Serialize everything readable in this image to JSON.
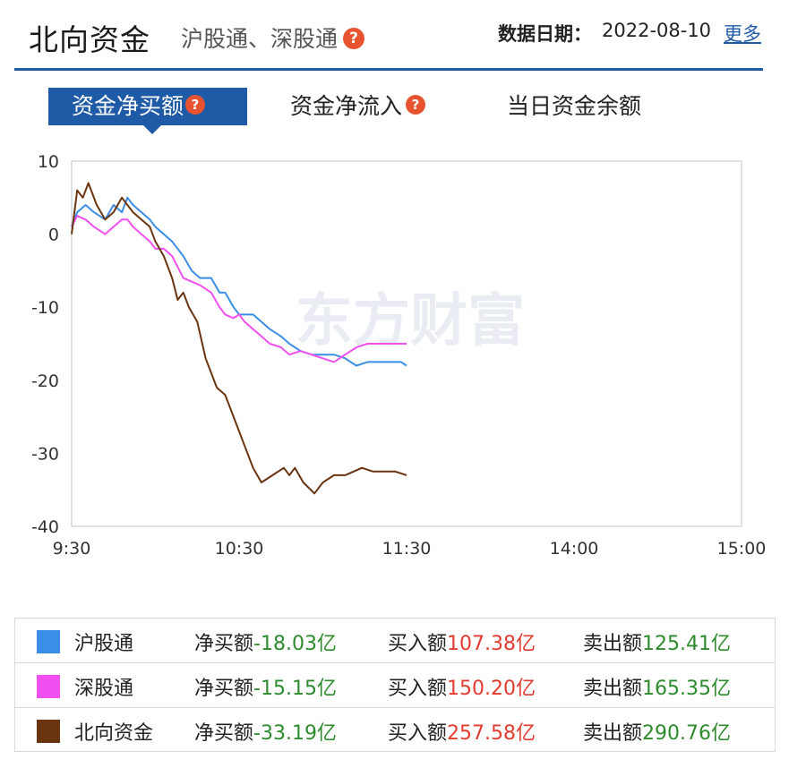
{
  "header": {
    "title": "北向资金",
    "subtitle": "沪股通、深股通",
    "help_glyph": "?",
    "date_label": "数据日期：",
    "date_value": "2022-08-10",
    "more_label": "更多"
  },
  "tabs": [
    {
      "label": "资金净买额",
      "active": true,
      "has_help": true
    },
    {
      "label": "资金净流入",
      "active": false,
      "has_help": true
    },
    {
      "label": "当日资金余额",
      "active": false,
      "has_help": false
    }
  ],
  "watermark": "东方财富",
  "chart_data": {
    "type": "line",
    "title": "",
    "xlabel": "",
    "ylabel": "",
    "ylim": [
      -40,
      10
    ],
    "yticks": [
      10,
      0,
      -10,
      -20,
      -30,
      -40
    ],
    "ytick_labels": [
      "10",
      "0",
      "-10",
      "-20",
      "-30",
      "-40"
    ],
    "xtick_labels": [
      "9:30",
      "10:30",
      "11:30",
      "14:00",
      "15:00"
    ],
    "x_unit": "trading minutes from 9:30",
    "xticks": [
      0,
      60,
      120,
      180,
      240
    ],
    "xlim": [
      0,
      240
    ],
    "grid": false,
    "series": [
      {
        "name": "沪股通",
        "color": "#3a8ee6",
        "x": [
          0,
          2,
          5,
          8,
          12,
          15,
          18,
          20,
          22,
          25,
          28,
          30,
          33,
          36,
          40,
          43,
          46,
          50,
          53,
          55,
          58,
          60,
          62,
          65,
          68,
          71,
          75,
          78,
          82,
          86,
          90,
          94,
          98,
          102,
          106,
          110,
          114,
          118,
          120
        ],
        "values": [
          1,
          3,
          4,
          3,
          2,
          4,
          3,
          5,
          4,
          3,
          2,
          1,
          0,
          -1,
          -3,
          -5,
          -6,
          -6,
          -8,
          -8,
          -10,
          -11,
          -11,
          -11,
          -12,
          -13,
          -14,
          -15,
          -16,
          -16.5,
          -16.5,
          -16.5,
          -17,
          -18,
          -17.5,
          -17.5,
          -17.5,
          -17.5,
          -18
        ]
      },
      {
        "name": "深股通",
        "color": "#f24ff0",
        "x": [
          0,
          2,
          5,
          8,
          12,
          15,
          18,
          20,
          22,
          25,
          28,
          30,
          33,
          36,
          40,
          43,
          46,
          50,
          53,
          55,
          58,
          60,
          62,
          65,
          68,
          71,
          75,
          78,
          82,
          86,
          90,
          94,
          98,
          102,
          106,
          110,
          114,
          118,
          120
        ],
        "values": [
          1,
          2.5,
          2,
          1,
          0,
          1,
          2,
          2,
          1,
          0,
          -1,
          -2,
          -2,
          -3,
          -6,
          -6.5,
          -7,
          -8,
          -10,
          -11,
          -11.5,
          -11,
          -12,
          -13,
          -14,
          -15,
          -15.5,
          -16.5,
          -16,
          -16.5,
          -17,
          -17.5,
          -16.5,
          -15.5,
          -15,
          -15,
          -15,
          -15,
          -15
        ]
      },
      {
        "name": "北向资金",
        "color": "#6b3410",
        "x": [
          0,
          2,
          4,
          6,
          9,
          12,
          15,
          18,
          20,
          22,
          25,
          28,
          30,
          33,
          36,
          38,
          40,
          42,
          45,
          48,
          52,
          55,
          58,
          60,
          62,
          65,
          68,
          72,
          76,
          78,
          80,
          83,
          87,
          90,
          94,
          98,
          101,
          104,
          108,
          112,
          116,
          120
        ],
        "values": [
          0,
          6,
          5,
          7,
          4,
          2,
          3,
          5,
          4,
          3,
          2,
          1,
          -1,
          -3,
          -6,
          -9,
          -8,
          -10,
          -12,
          -17,
          -21,
          -22,
          -25,
          -27,
          -29,
          -32,
          -34,
          -33,
          -32,
          -33,
          -32,
          -34,
          -35.5,
          -34,
          -33,
          -33,
          -32.5,
          -32,
          -32.5,
          -32.5,
          -32.5,
          -33
        ]
      }
    ]
  },
  "legend": {
    "rows": [
      {
        "name": "沪股通",
        "color": "#3a8ee6",
        "net_label": "净买额",
        "net_value": "-18.03亿",
        "buy_label": "买入额",
        "buy_value": "107.38亿",
        "sell_label": "卖出额",
        "sell_value": "125.41亿"
      },
      {
        "name": "深股通",
        "color": "#f24ff0",
        "net_label": "净买额",
        "net_value": "-15.15亿",
        "buy_label": "买入额",
        "buy_value": "150.20亿",
        "sell_label": "卖出额",
        "sell_value": "165.35亿"
      },
      {
        "name": "北向资金",
        "color": "#6b3410",
        "net_label": "净买额",
        "net_value": "-33.19亿",
        "buy_label": "买入额",
        "buy_value": "257.58亿",
        "sell_label": "卖出额",
        "sell_value": "290.76亿"
      }
    ]
  }
}
